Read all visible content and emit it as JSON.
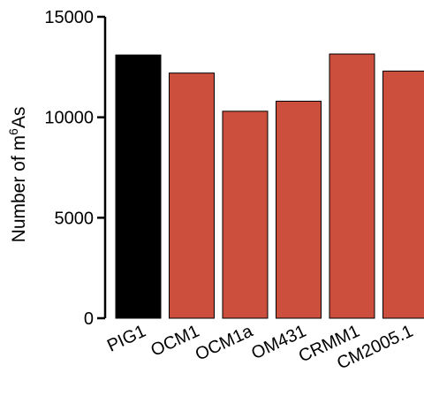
{
  "chart_data": {
    "type": "bar",
    "title": "",
    "xlabel": "",
    "ylabel": "Number of m6As",
    "ylabel_parts": {
      "before": "Number of m",
      "superscript": "6",
      "after": "As"
    },
    "categories": [
      "PIG1",
      "OCM1",
      "OCM1a",
      "OM431",
      "CRMM1",
      "CM2005.1"
    ],
    "values": [
      13100,
      12200,
      10300,
      10800,
      13150,
      12300
    ],
    "bar_colors": [
      "#000000",
      "#cc4e3c",
      "#cc4e3c",
      "#cc4e3c",
      "#cc4e3c",
      "#cc4e3c"
    ],
    "ylim": [
      0,
      15000
    ],
    "yticks": [
      0,
      5000,
      10000,
      15000
    ],
    "ytick_labels": [
      "0",
      "5000",
      "10000",
      "15000"
    ],
    "grid": false,
    "legend": "none"
  }
}
